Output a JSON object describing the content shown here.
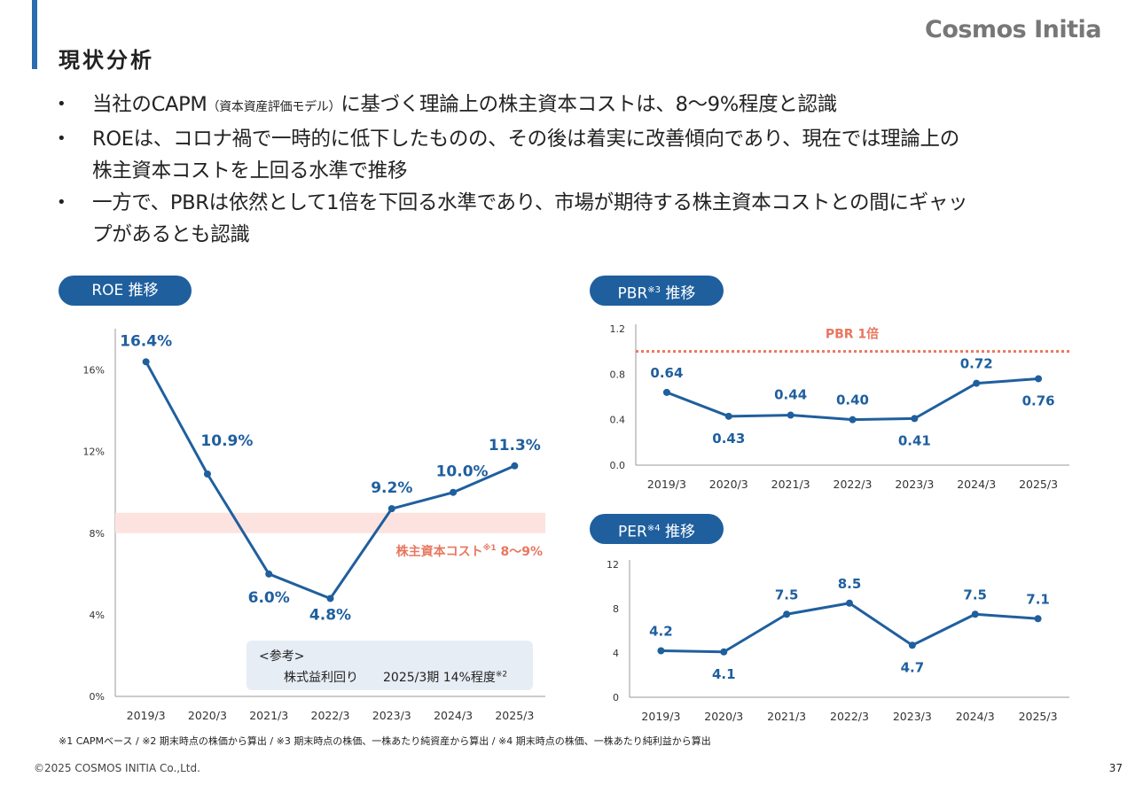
{
  "header": {
    "title": "現状分析",
    "logo": "Cosmos Initia"
  },
  "bullets": [
    {
      "pre": "当社のCAPM",
      "small": "（資本資産評価モデル）",
      "post": "に基づく理論上の株主資本コストは、8～9%程度と認識"
    },
    {
      "line1": "ROEは、コロナ禍で一時的に低下したものの、その後は着実に改善傾向であり、現在では理論上の",
      "line2": "株主資本コストを上回る水準で推移"
    },
    {
      "line1": "一方で、PBRは依然として1倍を下回る水準であり、市場が期待する株主資本コストとの間にギャッ",
      "line2": "プがあるとも認識"
    }
  ],
  "pills": {
    "roe": "ROE 推移",
    "pbr": "PBR",
    "pbr_sup": "※3",
    "pbr_suffix": " 推移",
    "per": "PER",
    "per_sup": "※4",
    "per_suffix": " 推移"
  },
  "colors": {
    "accent": "#1f5f9e",
    "line": "#1f5f9e",
    "annotation": "#e8775f",
    "band": "#fde3df",
    "ref_box": "#e7edf5"
  },
  "chart_data": [
    {
      "type": "line",
      "title": "ROE 推移",
      "categories": [
        "2019/3",
        "2020/3",
        "2021/3",
        "2022/3",
        "2023/3",
        "2024/3",
        "2025/3"
      ],
      "series": [
        {
          "values": [
            16.4,
            10.9,
            6.0,
            4.8,
            9.2,
            10.0,
            11.3
          ]
        }
      ],
      "data_labels": [
        "16.4%",
        "10.9%",
        "6.0%",
        "4.8%",
        "9.2%",
        "10.0%",
        "11.3%"
      ],
      "yticks": [
        "0%",
        "4%",
        "8%",
        "12%",
        "16%"
      ],
      "ylim": [
        0,
        17.5
      ],
      "band": {
        "from": 8,
        "to": 9
      },
      "annotation": {
        "text": "株主資本コスト",
        "sup": "※1",
        "suffix": " 8～9%"
      },
      "reference": {
        "label": "<参考>",
        "item": "株式益利回り",
        "value": "2025/3期 14%程度",
        "sup": "※2"
      }
    },
    {
      "type": "line",
      "title": "PBR 推移",
      "categories": [
        "2019/3",
        "2020/3",
        "2021/3",
        "2022/3",
        "2023/3",
        "2024/3",
        "2025/3"
      ],
      "series": [
        {
          "values": [
            0.64,
            0.43,
            0.44,
            0.4,
            0.41,
            0.72,
            0.76
          ]
        }
      ],
      "data_labels": [
        "0.64",
        "0.43",
        "0.44",
        "0.40",
        "0.41",
        "0.72",
        "0.76"
      ],
      "yticks": [
        "0.0",
        "0.4",
        "0.8",
        "1.2"
      ],
      "ylim": [
        0,
        1.2
      ],
      "reference_line": {
        "value": 1.0,
        "label": "PBR 1倍"
      }
    },
    {
      "type": "line",
      "title": "PER 推移",
      "categories": [
        "2019/3",
        "2020/3",
        "2021/3",
        "2022/3",
        "2023/3",
        "2024/3",
        "2025/3"
      ],
      "series": [
        {
          "values": [
            4.2,
            4.1,
            7.5,
            8.5,
            4.7,
            7.5,
            7.1
          ]
        }
      ],
      "data_labels": [
        "4.2",
        "4.1",
        "7.5",
        "8.5",
        "4.7",
        "7.5",
        "7.1"
      ],
      "yticks": [
        "0",
        "4",
        "8",
        "12"
      ],
      "ylim": [
        0,
        12
      ]
    }
  ],
  "footnote": "※1  CAPMベース  /  ※2  期末時点の株価から算出  /  ※3  期末時点の株価、一株あたり純資産から算出  /  ※4  期末時点の株価、一株あたり純利益から算出",
  "copyright": "©2025 COSMOS INITIA Co.,Ltd.",
  "page_number": "37"
}
